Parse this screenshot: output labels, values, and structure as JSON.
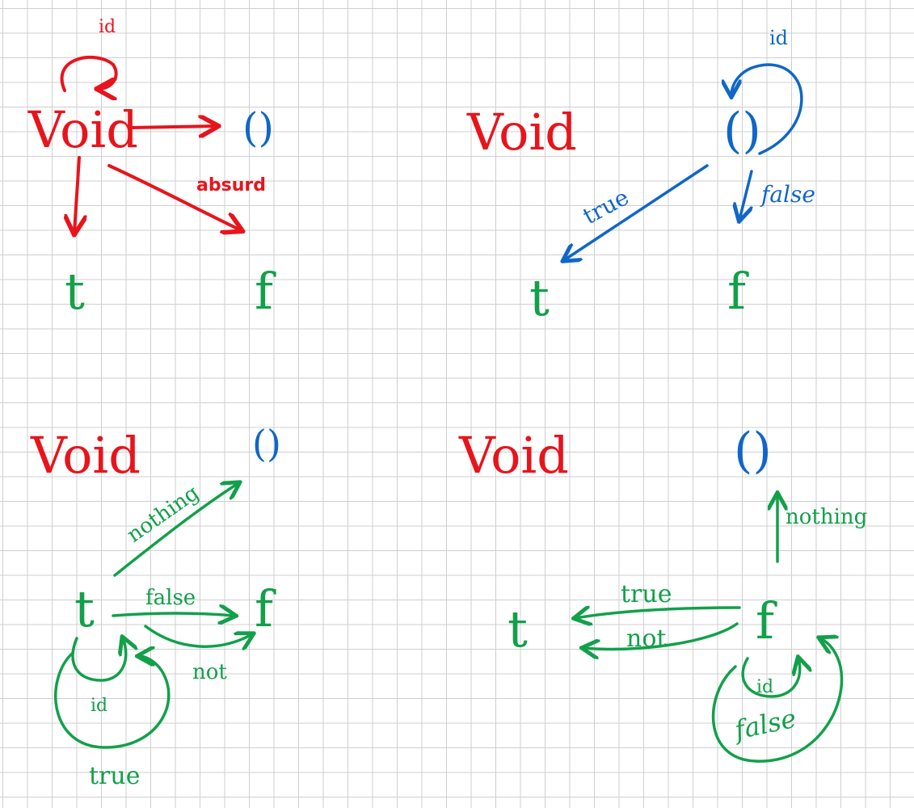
{
  "colors": {
    "void": "#e8141c",
    "unit": "#1166c7",
    "bool": "#12a04a",
    "grid": "#cfcfcf"
  },
  "objects": {
    "void": "Void",
    "unit": "()",
    "true_obj": "t",
    "false_obj": "f"
  },
  "panel1": {
    "id_label": "id",
    "absurd_label": "absurd"
  },
  "panel2": {
    "id_label": "id",
    "true_label": "true",
    "false_label": "false"
  },
  "panel3": {
    "nothing_label": "nothing",
    "false_label": "false",
    "not_label": "not",
    "id_label": "id",
    "true_label": "true"
  },
  "panel4": {
    "nothing_label": "nothing",
    "true_label": "true",
    "not_label": "not",
    "id_label": "id",
    "false_label": "false"
  }
}
